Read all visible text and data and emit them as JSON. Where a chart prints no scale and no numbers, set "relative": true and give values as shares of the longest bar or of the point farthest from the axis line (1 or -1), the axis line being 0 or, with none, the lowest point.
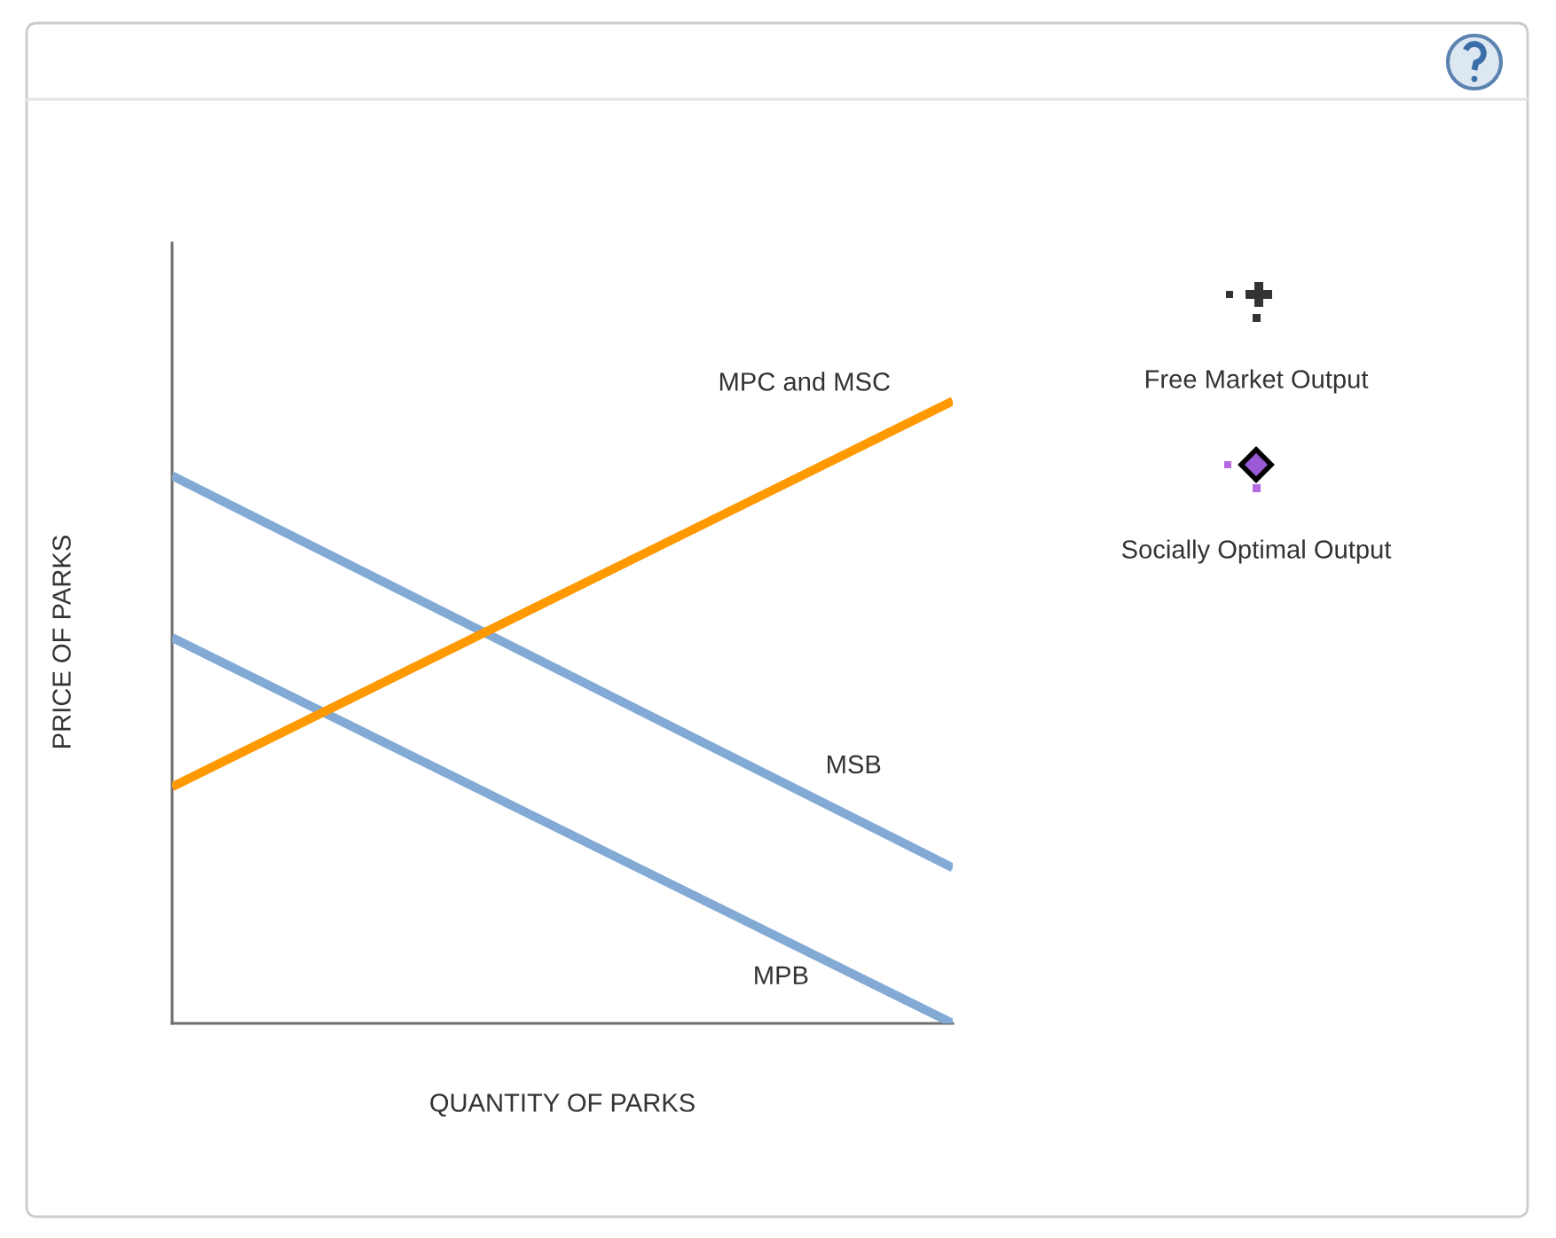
{
  "chart_data": {
    "type": "line",
    "relative": true,
    "xlabel": "QUANTITY OF PARKS",
    "ylabel": "PRICE OF PARKS",
    "categories": [
      null,
      null
    ],
    "series": [
      {
        "name": "MPC and MSC",
        "color": "#ff9900",
        "values": [
          0.38,
          1
        ]
      },
      {
        "name": "MSB",
        "color": "#82aad4",
        "values": [
          0.88,
          0.25
        ]
      },
      {
        "name": "MPB",
        "color": "#82aad4",
        "values": [
          0.62,
          0
        ]
      }
    ],
    "annotations": [
      "Free Market Output",
      "Socially Optimal Output"
    ]
  }
}
